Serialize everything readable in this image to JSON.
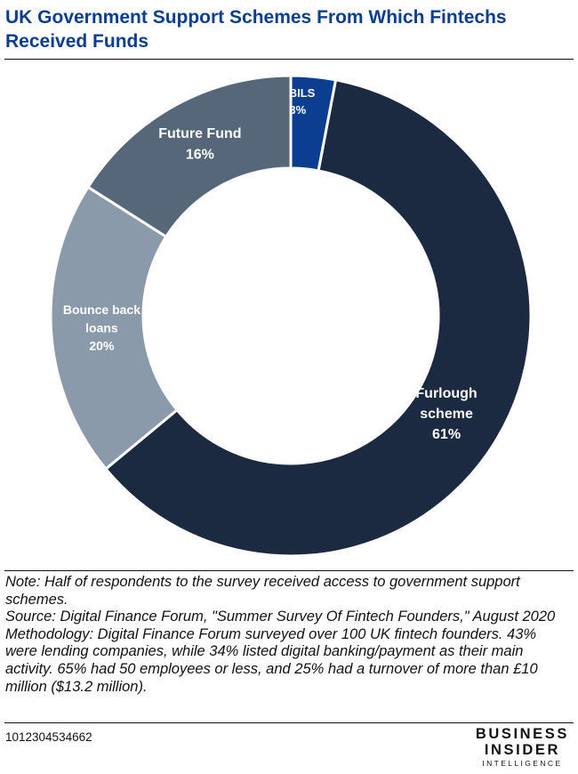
{
  "title": "UK Government Support Schemes From Which Fintechs Received Funds",
  "chart_data": {
    "type": "pie",
    "donut": true,
    "categories": [
      "CBILS",
      "Furlough scheme",
      "Bounce back loans",
      "Future Fund"
    ],
    "values": [
      3,
      61,
      20,
      16
    ],
    "labels": [
      "3%",
      "61%",
      "20%",
      "16%"
    ],
    "colors": [
      "#0b3d91",
      "#1b2a41",
      "#8a9aaa",
      "#56677a"
    ],
    "start": "12 o'clock, clockwise"
  },
  "notes": {
    "note": "Note: Half of respondents to the survey received access to government support schemes.",
    "source": "Source: Digital Finance Forum, \"Summer Survey Of Fintech Founders,\" August 2020",
    "methodology": "Methodology: Digital Finance Forum surveyed over 100 UK fintech founders. 43% were lending companies, while 34% listed digital banking/payment as their main activity. 65% had 50 employees or less, and 25% had a turnover of more than £10 million ($13.2 million)."
  },
  "footer": {
    "chart_id": "1012304534662",
    "logo_line1": "BUSINESS",
    "logo_line2": "INSIDER",
    "logo_line3": "INTELLIGENCE"
  }
}
